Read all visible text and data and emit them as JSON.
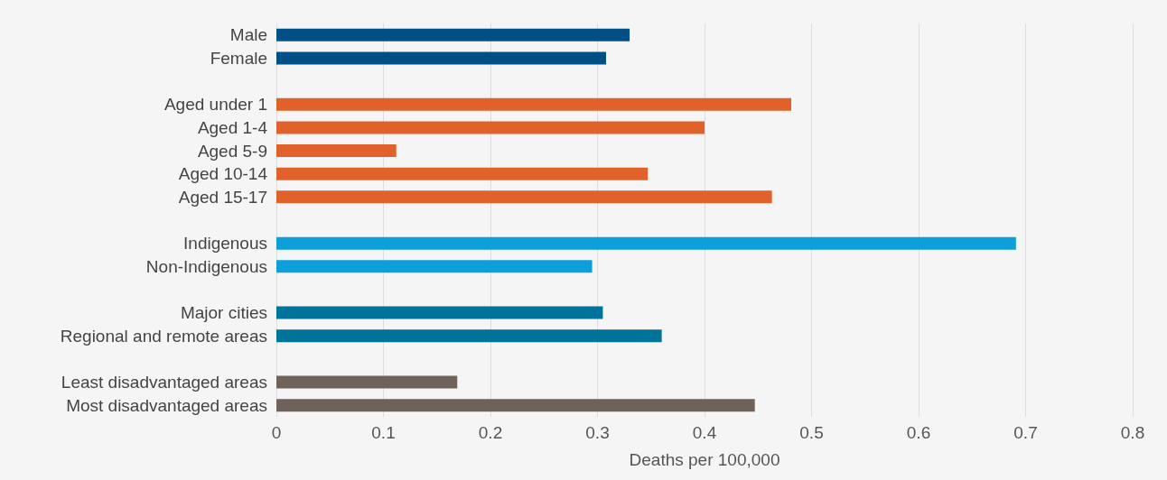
{
  "chart_data": {
    "type": "bar",
    "orientation": "horizontal",
    "xlabel": "Deaths per 100,000",
    "categories": [
      "Male",
      "Female",
      null,
      "Aged under 1",
      "Aged 1-4",
      "Aged 5-9",
      "Aged 10-14",
      "Aged 15-17",
      null,
      "Indigenous",
      "Non-Indigenous",
      null,
      "Major cities",
      "Regional and remote areas",
      null,
      "Least disadvantaged areas",
      "Most disadvantaged areas"
    ],
    "values": [
      0.33,
      0.308,
      null,
      0.481,
      0.4,
      0.112,
      0.347,
      0.463,
      null,
      0.691,
      0.295,
      null,
      0.305,
      0.36,
      null,
      0.169,
      0.447
    ],
    "colors": [
      "#005085",
      "#005085",
      null,
      "#e0622a",
      "#e0622a",
      "#e0622a",
      "#e0622a",
      "#e0622a",
      null,
      "#0c9fd9",
      "#0c9fd9",
      null,
      "#00739a",
      "#00739a",
      null,
      "#6e625a",
      "#6e625a"
    ],
    "xlim": [
      0,
      0.8
    ],
    "xticks": [
      0,
      0.1,
      0.2,
      0.3,
      0.4,
      0.5,
      0.6,
      0.7,
      0.8
    ],
    "grid": "x"
  }
}
